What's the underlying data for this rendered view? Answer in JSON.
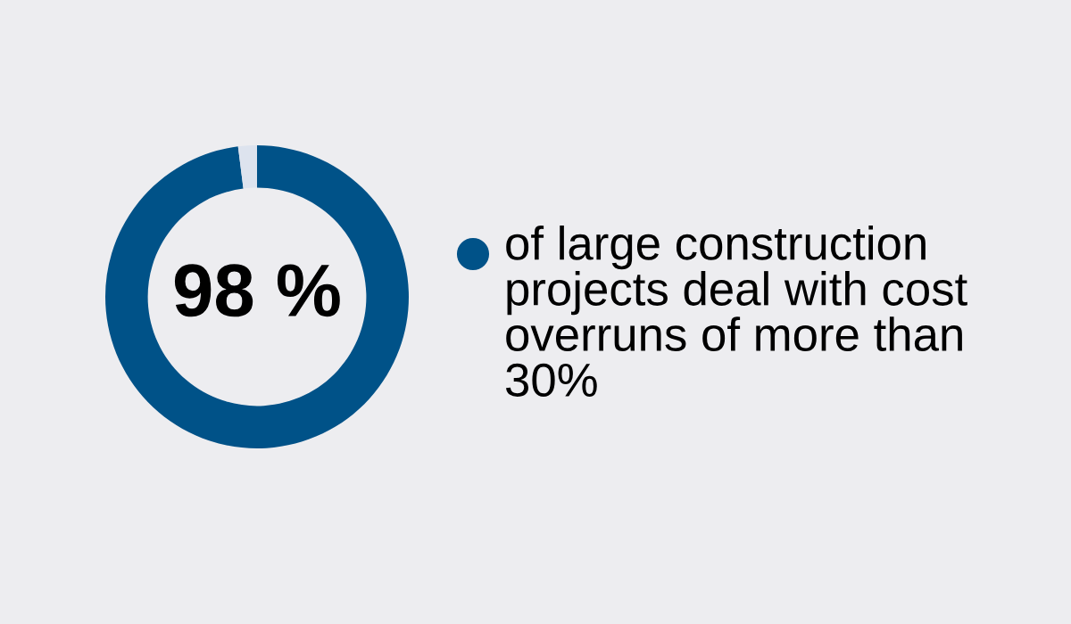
{
  "chart_data": {
    "type": "donut",
    "categories": [
      "of large construction projects deal with cost overruns of more than 30%",
      null
    ],
    "values": [
      98,
      2
    ],
    "colors": [
      "#005288",
      "#dde3ee"
    ],
    "value_labels": [
      "98 %",
      null
    ],
    "legend": "right"
  }
}
